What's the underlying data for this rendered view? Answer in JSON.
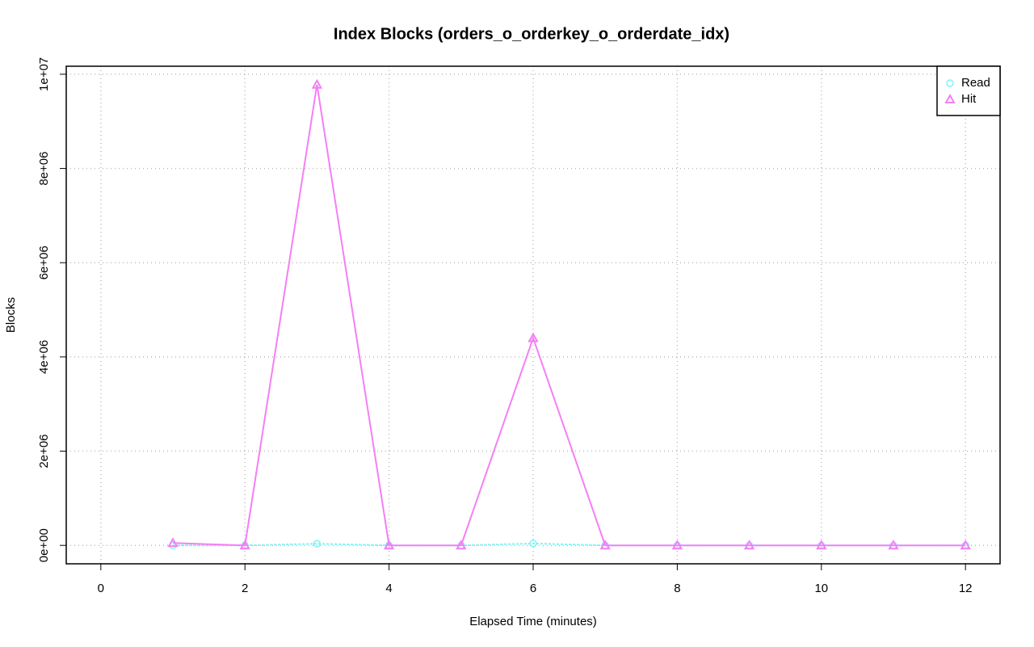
{
  "chart_data": {
    "type": "line",
    "title": "Index Blocks (orders_o_orderkey_o_orderdate_idx)",
    "x_label": "Elapsed Time (minutes)",
    "y_label": "Blocks",
    "x": [
      1,
      2,
      3,
      4,
      5,
      6,
      7,
      8,
      9,
      10,
      11,
      12
    ],
    "series": [
      {
        "name": "Read",
        "color": "#7ff5f5",
        "marker": "circle",
        "values": [
          0,
          0,
          35000,
          0,
          0,
          40000,
          0,
          0,
          0,
          0,
          0,
          0
        ]
      },
      {
        "name": "Hit",
        "color": "#f57ff5",
        "marker": "triangle",
        "values": [
          50000,
          0,
          9780000,
          0,
          0,
          4400000,
          0,
          0,
          0,
          0,
          0,
          0
        ]
      }
    ],
    "xlim": [
      -0.48,
      12.48
    ],
    "xticks": [
      0,
      2,
      4,
      6,
      8,
      10,
      12
    ],
    "ylim": [
      -391000,
      10170000
    ],
    "yticks": [
      {
        "value": 0,
        "label": "0e+00"
      },
      {
        "value": 2000000,
        "label": "2e+06"
      },
      {
        "value": 4000000,
        "label": "4e+06"
      },
      {
        "value": 6000000,
        "label": "6e+06"
      },
      {
        "value": 8000000,
        "label": "8e+06"
      },
      {
        "value": 10000000,
        "label": "1e+07"
      }
    ],
    "grid": true,
    "legend_position": "top-right"
  }
}
